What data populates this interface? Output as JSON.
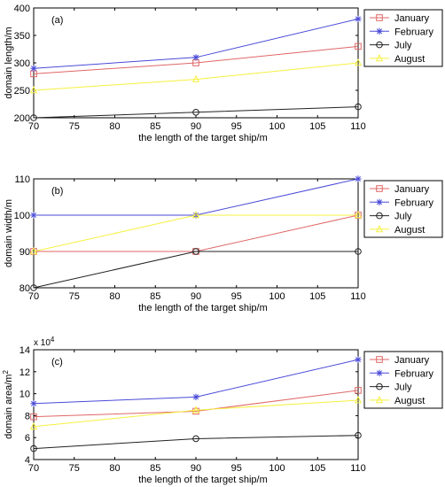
{
  "chart_data": [
    {
      "type": "line",
      "panel_label": "(a)",
      "xlabel": "the length of the target ship/m",
      "ylabel": "domain length/m",
      "x": [
        70,
        90,
        110
      ],
      "xlim": [
        70,
        110
      ],
      "ylim": [
        200,
        400
      ],
      "xticks": [
        70,
        75,
        80,
        85,
        90,
        95,
        100,
        105,
        110
      ],
      "yticks": [
        200,
        250,
        300,
        350,
        400
      ],
      "grid": false,
      "legend_position": "outside-right",
      "series": [
        {
          "name": "January",
          "values": [
            280,
            300,
            330
          ],
          "color": "#e06666",
          "marker": "square"
        },
        {
          "name": "February",
          "values": [
            290,
            310,
            380
          ],
          "color": "#4a4ad8",
          "marker": "star"
        },
        {
          "name": "July",
          "values": [
            200,
            210,
            220
          ],
          "color": "#222222",
          "marker": "circle"
        },
        {
          "name": "August",
          "values": [
            250,
            270,
            300
          ],
          "color": "#f5f040",
          "marker": "triangle"
        }
      ]
    },
    {
      "type": "line",
      "panel_label": "(b)",
      "xlabel": "the length of the target ship/m",
      "ylabel": "domain width/m",
      "x": [
        70,
        90,
        110
      ],
      "xlim": [
        70,
        110
      ],
      "ylim": [
        80,
        110
      ],
      "xticks": [
        70,
        75,
        80,
        85,
        90,
        95,
        100,
        105,
        110
      ],
      "yticks": [
        80,
        90,
        100,
        110
      ],
      "grid": false,
      "legend_position": "outside-right",
      "series": [
        {
          "name": "January",
          "values": [
            90,
            90,
            100
          ],
          "color": "#e06666",
          "marker": "square"
        },
        {
          "name": "February",
          "values": [
            100,
            100,
            110
          ],
          "color": "#4a4ad8",
          "marker": "star"
        },
        {
          "name": "July",
          "values": [
            80,
            90,
            90
          ],
          "color": "#222222",
          "marker": "circle"
        },
        {
          "name": "August",
          "values": [
            90,
            100,
            100
          ],
          "color": "#f5f040",
          "marker": "triangle"
        }
      ]
    },
    {
      "type": "line",
      "panel_label": "(c)",
      "xlabel": "the length of the target ship/m",
      "ylabel": "domain area/m",
      "ylabel_sup": "2",
      "scale_base": "x 10",
      "scale_exp": "4",
      "x": [
        70,
        90,
        110
      ],
      "xlim": [
        70,
        110
      ],
      "ylim": [
        4,
        14
      ],
      "xticks": [
        70,
        75,
        80,
        85,
        90,
        95,
        100,
        105,
        110
      ],
      "yticks": [
        4,
        6,
        8,
        10,
        12,
        14
      ],
      "grid": false,
      "legend_position": "outside-right",
      "series": [
        {
          "name": "January",
          "values": [
            7.9,
            8.4,
            10.3
          ],
          "color": "#e06666",
          "marker": "square"
        },
        {
          "name": "February",
          "values": [
            9.1,
            9.7,
            13.1
          ],
          "color": "#4a4ad8",
          "marker": "star"
        },
        {
          "name": "July",
          "values": [
            5.0,
            5.9,
            6.2
          ],
          "color": "#222222",
          "marker": "circle"
        },
        {
          "name": "August",
          "values": [
            7.0,
            8.5,
            9.4
          ],
          "color": "#f5f040",
          "marker": "triangle"
        }
      ]
    }
  ]
}
